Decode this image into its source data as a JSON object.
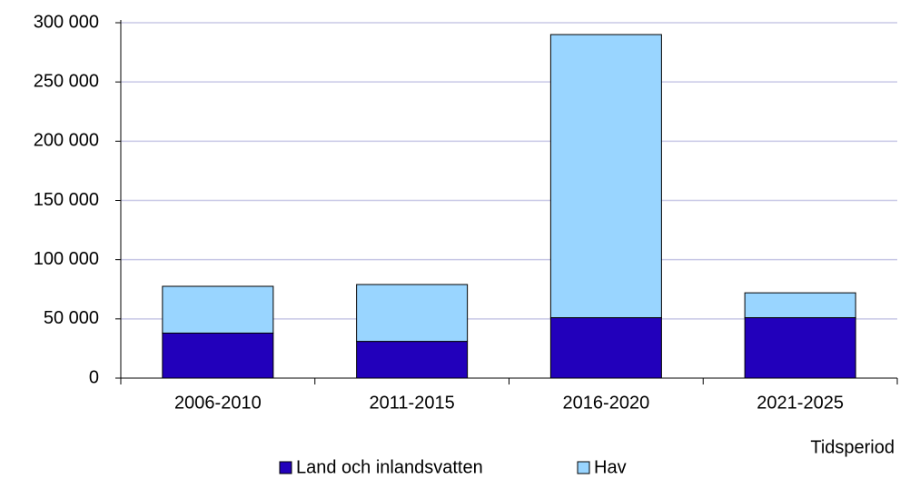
{
  "chart_data": {
    "type": "stacked_bar",
    "x_label": "Tidsperiod",
    "categories": [
      "2006-2010",
      "2011-2015",
      "2016-2020",
      "2021-2025"
    ],
    "series": [
      {
        "name": "Land och inlandsvatten",
        "color": "#2200bb",
        "values": [
          38000,
          31000,
          51000,
          51000
        ]
      },
      {
        "name": "Hav",
        "color": "#99d5ff",
        "values": [
          39500,
          48000,
          239000,
          21000
        ]
      }
    ],
    "ylim": [
      0,
      300000
    ],
    "yticks": [
      0,
      {
        "value": 50000,
        "label": "50 000"
      },
      {
        "value": 100000,
        "label": "100 000"
      },
      {
        "value": 150000,
        "label": "150 000"
      },
      {
        "value": 200000,
        "label": "200 000"
      },
      {
        "value": 250000,
        "label": "250 000"
      },
      {
        "value": 300000,
        "label": "300 000"
      }
    ],
    "grid": true,
    "legend": "bottom"
  }
}
